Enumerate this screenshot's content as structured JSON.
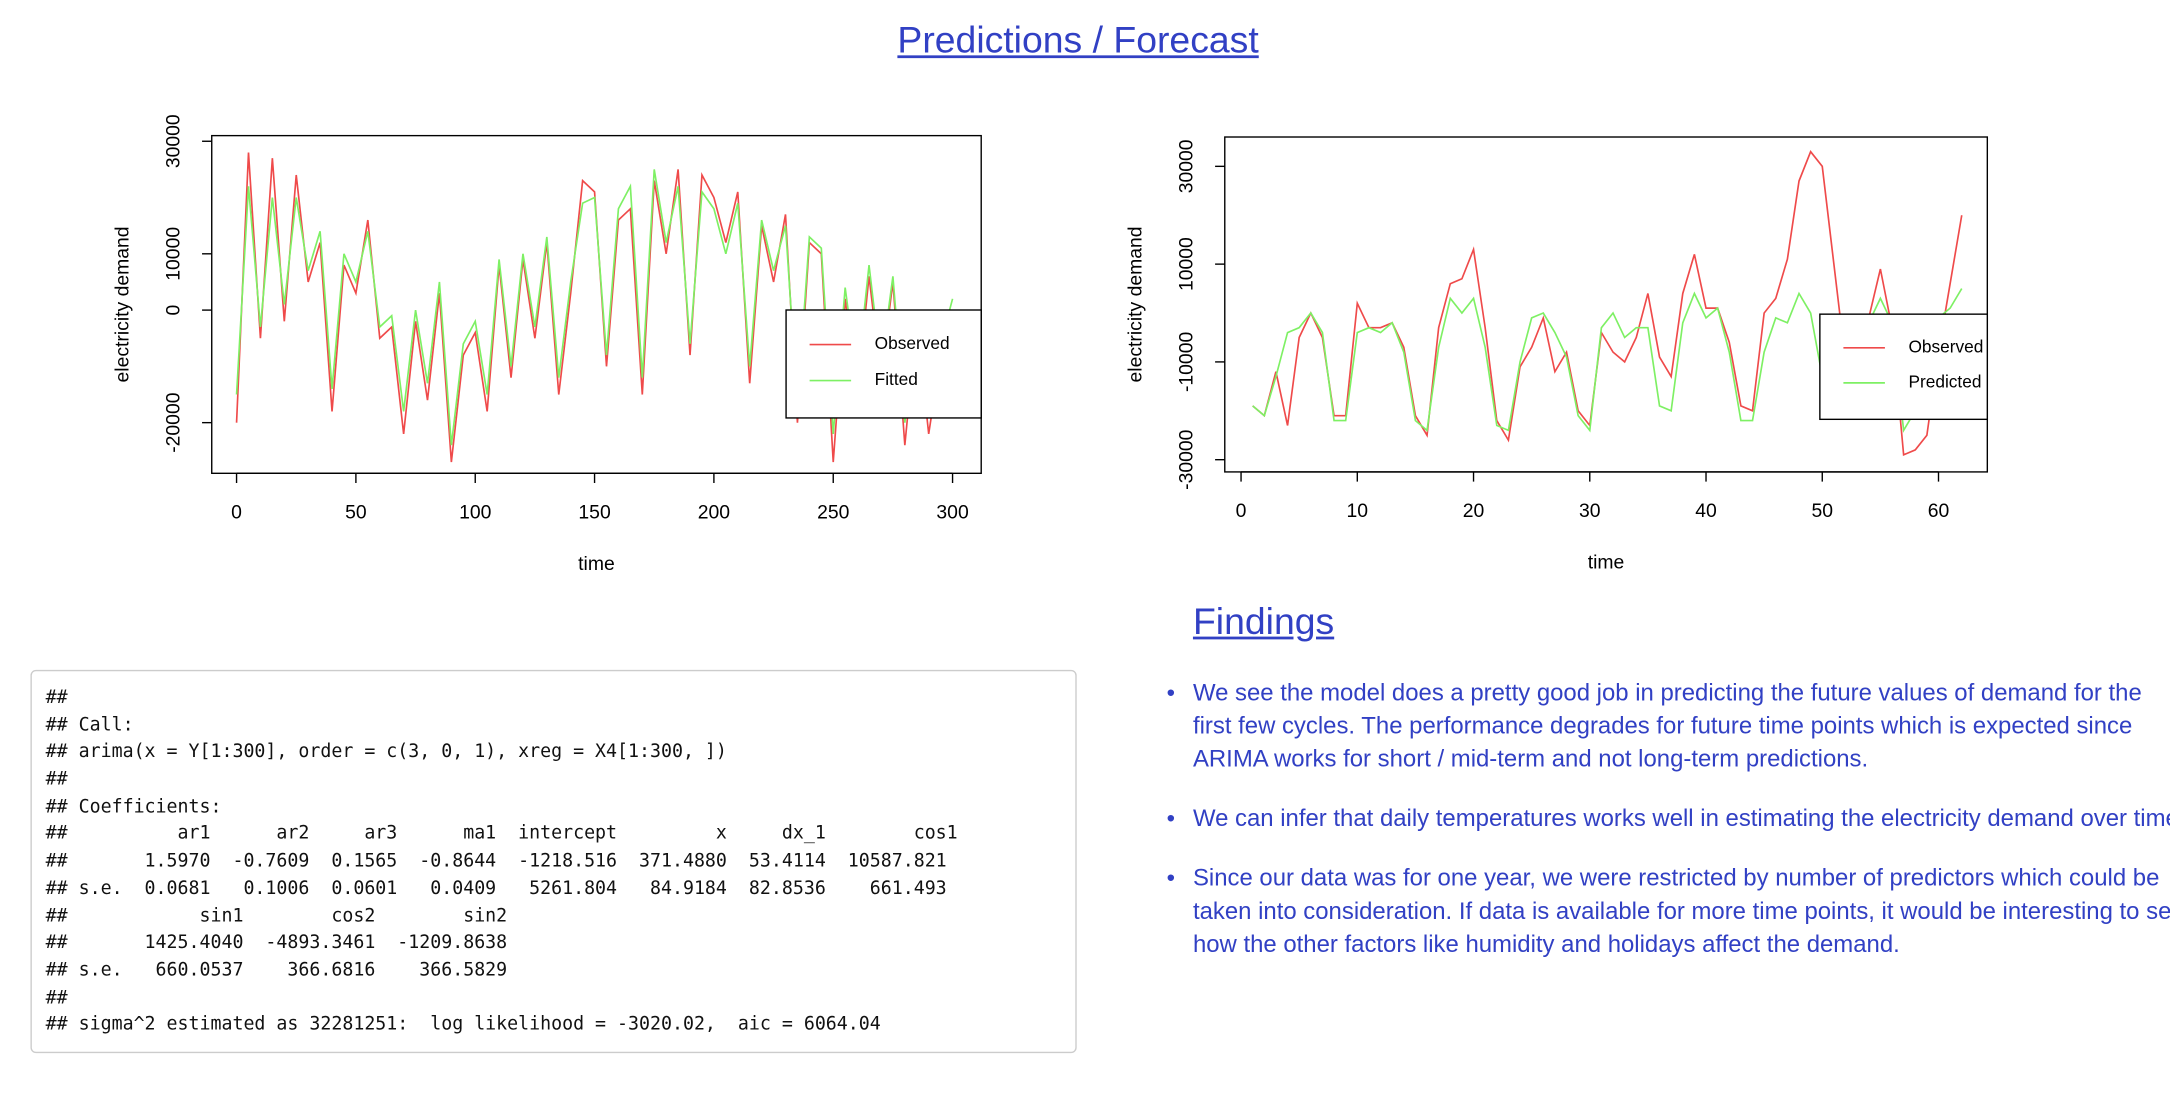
{
  "title": "Predictions / Forecast",
  "chart_data": [
    {
      "type": "line",
      "xlabel": "time",
      "ylabel": "electricity demand",
      "x": [
        0,
        5,
        10,
        15,
        20,
        25,
        30,
        35,
        40,
        45,
        50,
        55,
        60,
        65,
        70,
        75,
        80,
        85,
        90,
        95,
        100,
        105,
        110,
        115,
        120,
        125,
        130,
        135,
        140,
        145,
        150,
        155,
        160,
        165,
        170,
        175,
        180,
        185,
        190,
        195,
        200,
        205,
        210,
        215,
        220,
        225,
        230,
        235,
        240,
        245,
        250,
        255,
        260,
        265,
        270,
        275,
        280,
        285,
        290,
        295,
        300
      ],
      "series": [
        {
          "name": "Observed",
          "color": "#ef4a4a",
          "values": [
            -20000,
            28000,
            -5000,
            27000,
            -2000,
            24000,
            5000,
            12000,
            -18000,
            8000,
            3000,
            16000,
            -5000,
            -3000,
            -22000,
            -2000,
            -16000,
            3000,
            -27000,
            -8000,
            -4000,
            -18000,
            8000,
            -12000,
            9000,
            -5000,
            12000,
            -15000,
            3000,
            23000,
            21000,
            -10000,
            16000,
            18000,
            -15000,
            23000,
            10000,
            25000,
            -8000,
            24000,
            20000,
            12000,
            21000,
            -13000,
            15000,
            5000,
            17000,
            -20000,
            12000,
            10000,
            -27000,
            2000,
            -15000,
            6000,
            -12000,
            5000,
            -24000,
            -2000,
            -22000,
            -8000,
            0
          ]
        },
        {
          "name": "Fitted",
          "color": "#7ef064",
          "values": [
            -15000,
            22000,
            -3000,
            20000,
            1000,
            20000,
            7000,
            14000,
            -14000,
            10000,
            5000,
            14000,
            -3000,
            -1000,
            -18000,
            0,
            -13000,
            5000,
            -24000,
            -6000,
            -2000,
            -15000,
            9000,
            -10000,
            10000,
            -3000,
            13000,
            -12000,
            5000,
            19000,
            20000,
            -8000,
            18000,
            22000,
            -12000,
            25000,
            12000,
            22000,
            -6000,
            21000,
            18000,
            10000,
            19000,
            -10000,
            16000,
            7000,
            15000,
            -17000,
            13000,
            11000,
            -22000,
            4000,
            -12000,
            8000,
            -10000,
            6000,
            -20000,
            0,
            -18000,
            -6000,
            2000
          ]
        }
      ],
      "xlim": [
        -10.4,
        312
      ],
      "ylim": [
        -29000,
        31000
      ],
      "xticks": [
        0,
        50,
        100,
        150,
        200,
        250,
        300
      ],
      "yticks": [
        -20000,
        0,
        10000,
        30000
      ],
      "grid": false,
      "legend": "right"
    },
    {
      "type": "line",
      "xlabel": "time",
      "ylabel": "electricity demand",
      "x": [
        1,
        2,
        3,
        4,
        5,
        6,
        7,
        8,
        9,
        10,
        11,
        12,
        13,
        14,
        15,
        16,
        17,
        18,
        19,
        20,
        21,
        22,
        23,
        24,
        25,
        26,
        27,
        28,
        29,
        30,
        31,
        32,
        33,
        34,
        35,
        36,
        37,
        38,
        39,
        40,
        41,
        42,
        43,
        44,
        45,
        46,
        47,
        48,
        49,
        50,
        51,
        52,
        53,
        54,
        55,
        56,
        57,
        58,
        59,
        60,
        61,
        62
      ],
      "series": [
        {
          "name": "Observed",
          "color": "#ef4a4a",
          "values": [
            -19000,
            -21000,
            -12000,
            -23000,
            -5000,
            0,
            -5000,
            -21000,
            -21000,
            2000,
            -3000,
            -3000,
            -2000,
            -7000,
            -21000,
            -25000,
            -3000,
            6000,
            7000,
            13000,
            -3000,
            -22000,
            -26000,
            -11000,
            -7000,
            -1000,
            -12000,
            -8000,
            -20000,
            -23000,
            -4000,
            -8000,
            -10000,
            -5000,
            4000,
            -9000,
            -13000,
            4000,
            12000,
            1000,
            1000,
            -6000,
            -19000,
            -20000,
            0,
            3000,
            11000,
            27000,
            33000,
            30000,
            10000,
            -10000,
            -11000,
            -1000,
            9000,
            -3000,
            -29000,
            -28000,
            -25000,
            -8000,
            6000,
            20000
          ]
        },
        {
          "name": "Predicted",
          "color": "#7ef064",
          "values": [
            -19000,
            -21000,
            -13000,
            -4000,
            -3000,
            0,
            -4000,
            -22000,
            -22000,
            -4000,
            -3000,
            -4000,
            -2000,
            -8000,
            -22000,
            -24000,
            -7000,
            3000,
            0,
            3000,
            -7000,
            -23000,
            -24000,
            -10000,
            -1000,
            0,
            -4000,
            -9000,
            -21000,
            -24000,
            -3000,
            0,
            -5000,
            -3000,
            -3000,
            -19000,
            -20000,
            -2000,
            4000,
            -1000,
            1000,
            -8000,
            -22000,
            -22000,
            -8000,
            -1000,
            -2000,
            4000,
            0,
            -13000,
            -15000,
            -11000,
            -8000,
            -2000,
            3000,
            -2000,
            -24000,
            -20000,
            -8000,
            -1000,
            1000,
            5000
          ]
        }
      ],
      "xlim": [
        -1.4,
        64.2
      ],
      "ylim": [
        -32500,
        36000
      ],
      "xticks": [
        0,
        10,
        20,
        30,
        40,
        50,
        60
      ],
      "yticks": [
        -30000,
        -10000,
        10000,
        30000
      ],
      "grid": false,
      "legend": "right"
    }
  ],
  "code": [
    "##",
    "## Call:",
    "## arima(x = Y[1:300], order = c(3, 0, 1), xreg = X4[1:300, ])",
    "##",
    "## Coefficients:",
    "##          ar1      ar2     ar3      ma1  intercept         x     dx_1        cos1",
    "##       1.5970  -0.7609  0.1565  -0.8644  -1218.516  371.4880  53.4114  10587.821",
    "## s.e.  0.0681   0.1006  0.0601   0.0409   5261.804   84.9184  82.8536    661.493",
    "##            sin1        cos2        sin2",
    "##       1425.4040  -4893.3461  -1209.8638",
    "## s.e.   660.0537    366.6816    366.5829",
    "##",
    "## sigma^2 estimated as 32281251:  log likelihood = -3020.02,  aic = 6064.04"
  ],
  "findings": {
    "heading": "Findings",
    "items": [
      "We see the model does a pretty good job in predicting the future values of demand for the first few cycles. The performance degrades for future time points which is expected since ARIMA works for short / mid-term and not long-term predictions.",
      "We can infer that daily temperatures works well in estimating the electricity demand over time.",
      "Since our data was for one year, we were restricted by number of predictors which could be taken into consideration. If data is available for more time points, it would be interesting to see how the other factors like humidity and holidays affect the demand."
    ]
  }
}
